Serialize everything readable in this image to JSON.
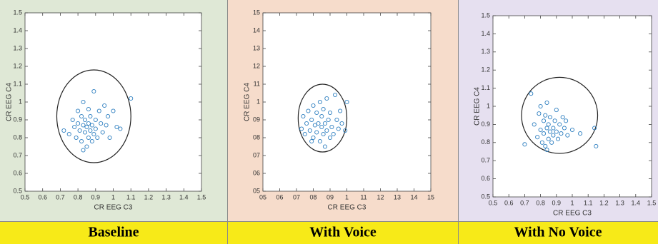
{
  "chart_data": [
    {
      "type": "scatter",
      "title": "Baseline",
      "xlabel": "CR EEG C3",
      "ylabel": "CR EEG C4",
      "color": "#2e7fc0",
      "xlim": [
        0.5,
        1.5
      ],
      "ylim": [
        0.5,
        1.5
      ],
      "xticks": [
        0.5,
        0.6,
        0.7,
        0.8,
        0.9,
        1,
        1.1,
        1.2,
        1.3,
        1.4,
        1.5
      ],
      "yticks": [
        0.5,
        0.6,
        0.7,
        0.8,
        0.9,
        1,
        1.1,
        1.2,
        1.3,
        1.4,
        1.5
      ],
      "ellipse": {
        "cx": 0.89,
        "cy": 0.92,
        "rx": 0.21,
        "ry": 0.26
      },
      "x": [
        0.72,
        0.75,
        0.77,
        0.78,
        0.79,
        0.8,
        0.8,
        0.81,
        0.82,
        0.82,
        0.83,
        0.83,
        0.84,
        0.84,
        0.85,
        0.85,
        0.86,
        0.86,
        0.86,
        0.87,
        0.87,
        0.88,
        0.88,
        0.89,
        0.89,
        0.9,
        0.9,
        0.91,
        0.92,
        0.93,
        0.94,
        0.95,
        0.96,
        0.97,
        0.98,
        1.0,
        1.02,
        1.04,
        1.1,
        0.83
      ],
      "y": [
        0.84,
        0.82,
        0.9,
        0.86,
        0.8,
        0.88,
        0.95,
        0.84,
        0.78,
        0.92,
        0.87,
        1.0,
        0.83,
        0.9,
        0.75,
        0.86,
        0.8,
        0.88,
        0.96,
        0.84,
        0.92,
        0.78,
        0.87,
        0.82,
        1.06,
        0.9,
        0.85,
        0.8,
        0.95,
        0.88,
        0.83,
        0.98,
        0.87,
        0.92,
        0.8,
        0.95,
        0.86,
        0.85,
        1.02,
        0.73
      ]
    },
    {
      "type": "scatter",
      "title": "With Voice",
      "xlabel": "CR EEG C3",
      "ylabel": "CR EEG C4",
      "color": "#2e7fc0",
      "xlim": [
        0.5,
        1.5
      ],
      "ylim": [
        0.5,
        1.5
      ],
      "xticks": [
        {
          "value": 0.5,
          "label": "05"
        },
        {
          "value": 0.6,
          "label": "06"
        },
        {
          "value": 0.7,
          "label": "07"
        },
        {
          "value": 0.8,
          "label": "08"
        },
        {
          "value": 0.9,
          "label": "09"
        },
        1,
        {
          "value": 1.1,
          "label": "11"
        },
        {
          "value": 1.2,
          "label": "12"
        },
        {
          "value": 1.3,
          "label": "13"
        },
        {
          "value": 1.4,
          "label": "14"
        },
        {
          "value": 1.5,
          "label": "15"
        }
      ],
      "yticks": [
        {
          "value": 0.5,
          "label": "05"
        },
        {
          "value": 0.6,
          "label": "06"
        },
        {
          "value": 0.7,
          "label": "07"
        },
        {
          "value": 0.8,
          "label": "08"
        },
        {
          "value": 0.9,
          "label": "09"
        },
        1,
        {
          "value": 1.1,
          "label": "11"
        },
        {
          "value": 1.2,
          "label": "12"
        },
        {
          "value": 1.3,
          "label": "13"
        },
        {
          "value": 1.4,
          "label": "14"
        },
        {
          "value": 1.5,
          "label": "15"
        }
      ],
      "ellipse": {
        "cx": 0.855,
        "cy": 0.91,
        "rx": 0.145,
        "ry": 0.19
      },
      "x": [
        0.73,
        0.74,
        0.75,
        0.76,
        0.77,
        0.78,
        0.79,
        0.8,
        0.8,
        0.81,
        0.82,
        0.82,
        0.83,
        0.84,
        0.84,
        0.85,
        0.85,
        0.86,
        0.86,
        0.87,
        0.87,
        0.88,
        0.88,
        0.89,
        0.9,
        0.9,
        0.91,
        0.92,
        0.93,
        0.94,
        0.95,
        0.96,
        0.97,
        0.99,
        1.0,
        0.79
      ],
      "y": [
        0.85,
        0.92,
        0.82,
        0.88,
        0.95,
        0.84,
        0.9,
        0.8,
        0.98,
        0.87,
        0.83,
        0.94,
        0.88,
        0.78,
        1.0,
        0.86,
        0.92,
        0.82,
        0.96,
        0.88,
        0.75,
        0.84,
        1.02,
        0.9,
        0.8,
        0.94,
        0.86,
        0.82,
        1.04,
        0.9,
        0.85,
        0.95,
        0.88,
        0.84,
        1.0,
        0.78
      ]
    },
    {
      "type": "scatter",
      "title": "With No Voice",
      "xlabel": "CR EEG C3",
      "ylabel": "CR EEG C4",
      "color": "#2e7fc0",
      "xlim": [
        0.5,
        1.5
      ],
      "ylim": [
        0.5,
        1.5
      ],
      "xticks": [
        0.5,
        0.6,
        0.7,
        0.8,
        0.9,
        1,
        1.1,
        1.2,
        1.3,
        1.4,
        1.5
      ],
      "yticks": [
        0.5,
        0.6,
        0.7,
        0.8,
        0.9,
        1,
        1.1,
        1.2,
        1.3,
        1.4,
        1.5
      ],
      "ellipse": {
        "cx": 0.92,
        "cy": 0.95,
        "rx": 0.24,
        "ry": 0.21
      },
      "x": [
        0.7,
        0.74,
        0.76,
        0.78,
        0.79,
        0.8,
        0.8,
        0.81,
        0.82,
        0.82,
        0.83,
        0.83,
        0.84,
        0.84,
        0.85,
        0.85,
        0.86,
        0.86,
        0.87,
        0.88,
        0.88,
        0.89,
        0.9,
        0.9,
        0.91,
        0.92,
        0.93,
        0.94,
        0.95,
        0.96,
        0.97,
        1.0,
        1.05,
        1.14,
        1.15,
        0.84
      ],
      "y": [
        0.79,
        1.07,
        0.9,
        0.83,
        0.96,
        0.87,
        1.0,
        0.8,
        0.92,
        0.85,
        0.78,
        0.95,
        0.88,
        1.02,
        0.82,
        0.9,
        0.86,
        0.94,
        0.8,
        0.88,
        0.84,
        0.92,
        0.86,
        0.98,
        0.82,
        0.9,
        0.85,
        0.94,
        0.88,
        0.92,
        0.84,
        0.87,
        0.85,
        0.88,
        0.78,
        0.76
      ]
    }
  ]
}
